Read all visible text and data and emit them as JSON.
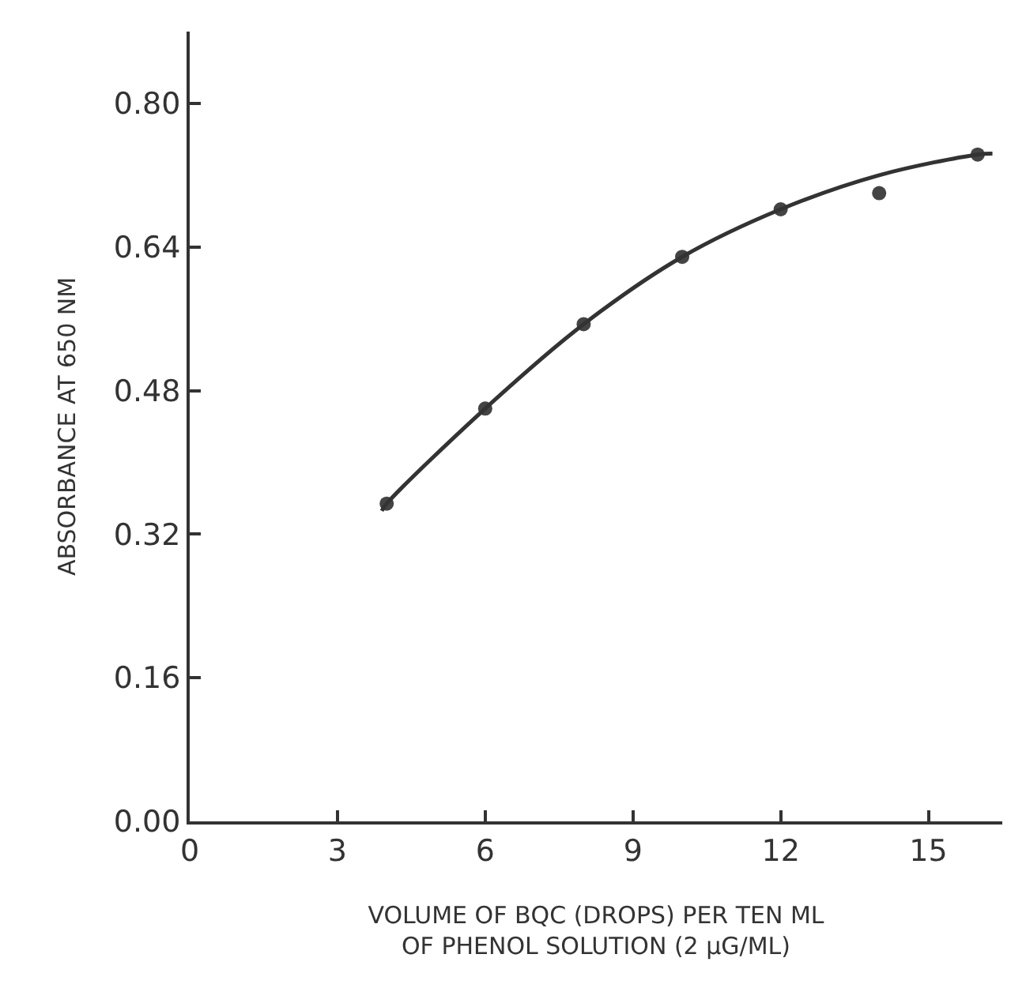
{
  "chart_data": {
    "type": "scatter",
    "xlabel": "VOLUME OF BQC (DROPS) PER TEN ML\nOF PHENOL SOLUTION (2 μG/ML)",
    "ylabel": "ABSORBANCE AT 650 NM",
    "series": [
      {
        "color": "#444444",
        "marker": "circle",
        "x": [
          4,
          6,
          8,
          10,
          12,
          14,
          16
        ],
        "values": [
          0.354,
          0.46,
          0.554,
          0.629,
          0.682,
          0.7,
          0.743
        ]
      },
      {
        "type": "line",
        "color": "#333333",
        "marker": "none",
        "line_style": "solid",
        "x": [
          3.9,
          4,
          6,
          8,
          10,
          12,
          14,
          16,
          16.3
        ],
        "values": [
          0.346,
          0.354,
          0.46,
          0.554,
          0.629,
          0.682,
          0.72,
          0.743,
          0.744
        ]
      }
    ],
    "xlim": [
      0,
      16.5
    ],
    "ylim": [
      0,
      0.88
    ],
    "xticks": [
      0,
      3,
      6,
      9,
      12,
      15
    ],
    "yticks": [
      {
        "value": 0,
        "label": "0.00"
      },
      0.16,
      0.32,
      0.48,
      {
        "value": 0.64,
        "label": "0.64"
      },
      {
        "value": 0.8,
        "label": "0.80"
      }
    ]
  }
}
